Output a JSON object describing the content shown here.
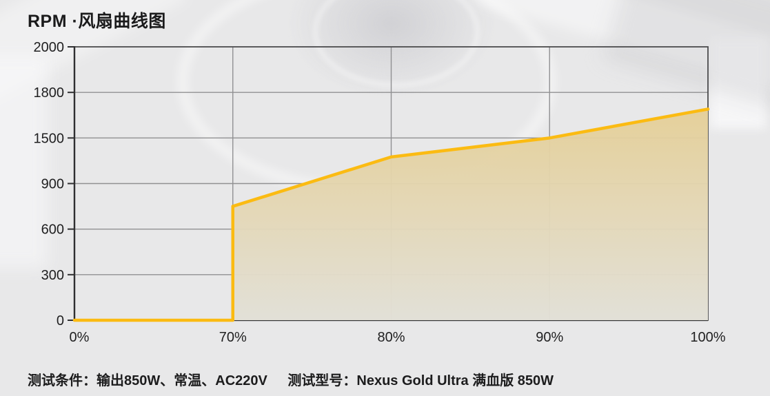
{
  "page": {
    "title": "RPM ·风扇曲线图",
    "footer_left": "测试条件：输出850W、常温、AC220V",
    "footer_right": "测试型号：Nexus Gold Ultra 满血版 850W"
  },
  "colors": {
    "accent_line": "#FBBB12",
    "fill_top": "#E5CE93",
    "fill_bottom": "#E2E0D7",
    "grid": "#909092",
    "frame": "#4B4B4D",
    "axis": "#2F2F31",
    "text": "#1F1F20",
    "page_background": "#E8E8E9"
  },
  "chart_data": {
    "type": "area",
    "title": "RPM ·风扇曲线图",
    "x_ticks": [
      "0%",
      "70%",
      "80%",
      "90%",
      "100%"
    ],
    "y_axis": {
      "unit": "RPM",
      "tick_values": [
        0,
        300,
        600,
        900,
        1500,
        1800,
        2000
      ],
      "evenly_spaced_ticks": true,
      "range": [
        0,
        2000
      ]
    },
    "series": [
      {
        "name": "fan-rpm-curve",
        "points": [
          [
            "0%",
            0
          ],
          [
            "70%",
            0
          ],
          [
            "70%",
            750
          ],
          [
            "80%",
            1250
          ],
          [
            "90%",
            1500
          ],
          [
            "100%",
            1690
          ]
        ]
      }
    ],
    "grid": true,
    "legend": false
  }
}
